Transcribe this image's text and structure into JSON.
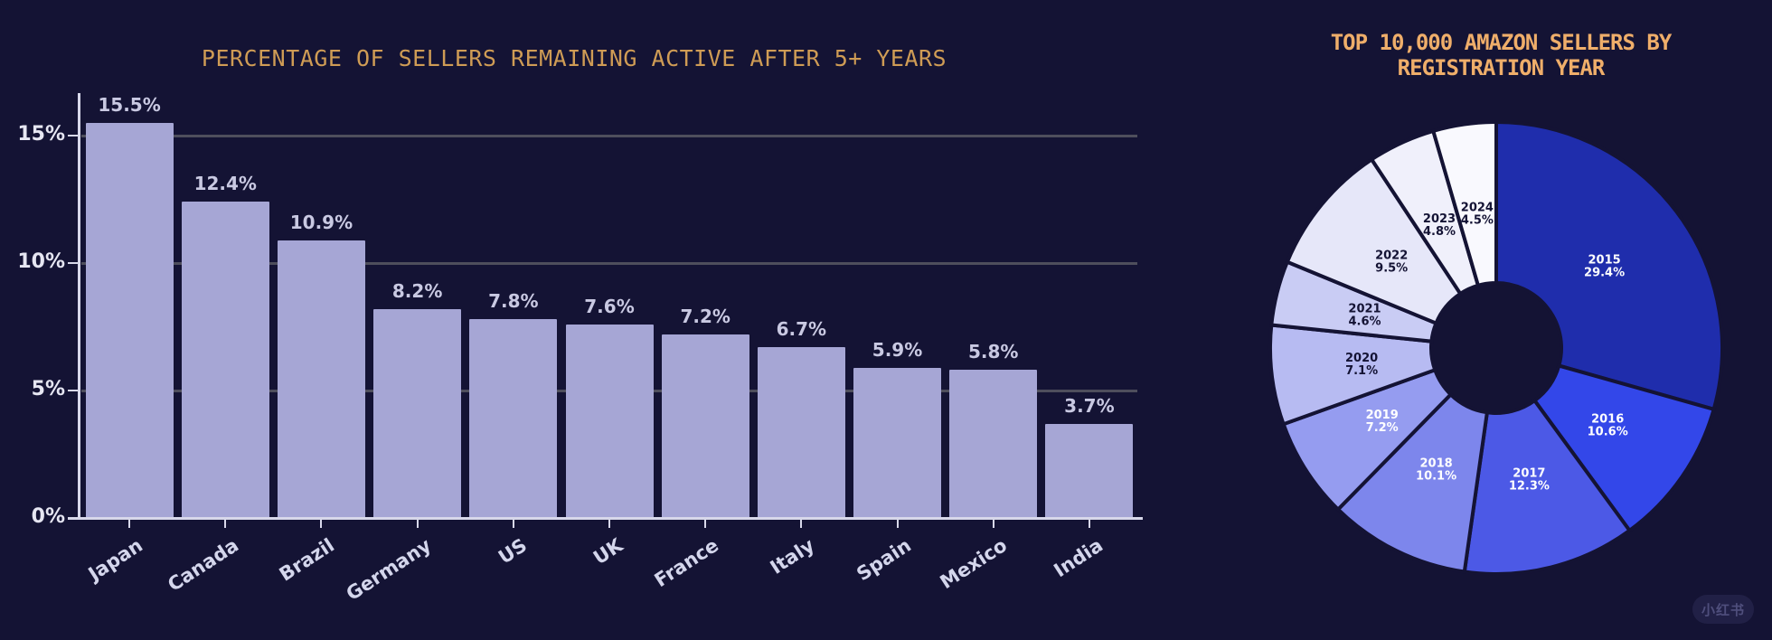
{
  "colors": {
    "background": "#141334",
    "bar_fill": "#a6a6d5",
    "bar_title": "#cf9c55",
    "pie_title": "#efae6a",
    "axis": "#d8d8ea",
    "gridline": "#4e4e5c",
    "bar_value_label": "#c9c9e2"
  },
  "watermark": {
    "text": "小红书"
  },
  "chart_data": [
    {
      "id": "active-sellers-bar",
      "type": "bar",
      "title": "PERCENTAGE OF SELLERS REMAINING ACTIVE AFTER 5+ YEARS",
      "categories": [
        "Japan",
        "Canada",
        "Brazil",
        "Germany",
        "US",
        "UK",
        "France",
        "Italy",
        "Spain",
        "Mexico",
        "India"
      ],
      "values": [
        15.5,
        12.4,
        10.9,
        8.2,
        7.8,
        7.6,
        7.2,
        6.7,
        5.9,
        5.8,
        3.7
      ],
      "value_label_suffix": "%",
      "xlabel": "",
      "ylabel": "",
      "ylim": [
        0,
        16.8
      ],
      "yticks": [
        0,
        5,
        10,
        15
      ],
      "ytick_labels": [
        "0%",
        "5%",
        "10%",
        "15%"
      ],
      "grid": true,
      "legend": null,
      "tick_label_rotation_deg": -33
    },
    {
      "id": "registration-year-pie",
      "type": "pie",
      "title": "TOP 10,000 AMAZON SELLERS BY REGISTRATION YEAR",
      "title_lines": [
        "TOP 10,000 AMAZON SELLERS BY",
        "REGISTRATION YEAR"
      ],
      "start_angle": "12-oclock",
      "direction": "clockwise",
      "donut_hole_ratio": 0.288,
      "slices": [
        {
          "label": "2015",
          "value": 29.4,
          "color": "#1f2dac",
          "text_color": "#ffffff"
        },
        {
          "label": "2016",
          "value": 10.6,
          "color": "#3347e9",
          "text_color": "#ffffff"
        },
        {
          "label": "2017",
          "value": 12.3,
          "color": "#4c59e6",
          "text_color": "#ffffff"
        },
        {
          "label": "2018",
          "value": 10.1,
          "color": "#7d86ec",
          "text_color": "#ffffff"
        },
        {
          "label": "2019",
          "value": 7.2,
          "color": "#959cf0",
          "text_color": "#ffffff"
        },
        {
          "label": "2020",
          "value": 7.1,
          "color": "#b7bbf2",
          "text_color": "#141334"
        },
        {
          "label": "2021",
          "value": 4.6,
          "color": "#c9ccf4",
          "text_color": "#141334"
        },
        {
          "label": "2022",
          "value": 9.5,
          "color": "#e6e7f9",
          "text_color": "#141334"
        },
        {
          "label": "2023",
          "value": 4.8,
          "color": "#f0f0fb",
          "text_color": "#141334"
        },
        {
          "label": "2024",
          "value": 4.5,
          "color": "#f9f9fe",
          "text_color": "#141334"
        }
      ]
    }
  ]
}
